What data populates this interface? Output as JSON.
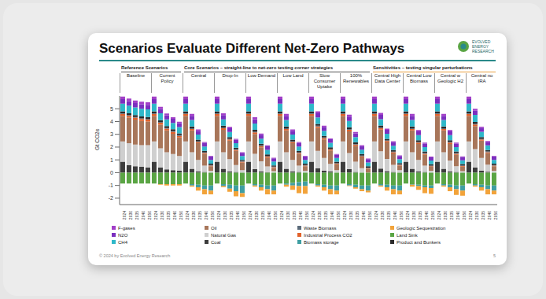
{
  "slide": {
    "logo": "EVOLVED ENERGY RESEARCH",
    "footer": "© 2024 by Evolved Energy Research",
    "page": "5"
  },
  "chart_data": {
    "type": "bar",
    "stacked": true,
    "title": "Scenarios Evaluate Different Net-Zero Pathways",
    "y_label": "Gt CO2e",
    "groups": [
      {
        "label": "Reference Scenarios",
        "scenarios": [
          "Baseline",
          "Current Policy"
        ]
      },
      {
        "label": "Core Scenarios – straight-line to net-zero testing corner strategies",
        "scenarios": [
          "Central",
          "Drop-In",
          "Low Demand",
          "Low Land",
          "Slow Consumer Uptake",
          "100% Renewables"
        ]
      },
      {
        "label": "Sensitivities – testing singular perturbations",
        "scenarios": [
          "Central High Data Center",
          "Central Low Biomass",
          "Central w Geologic H2",
          "Central no IRA"
        ]
      }
    ],
    "categories": [
      "2024",
      "2030",
      "2035",
      "2040",
      "2050",
      "2024",
      "2030",
      "2035",
      "2040",
      "2050",
      "2024",
      "2030",
      "2035",
      "2040",
      "2050",
      "2024",
      "2030",
      "2035",
      "2040",
      "2050",
      "2024",
      "2030",
      "2035",
      "2040",
      "2050",
      "2024",
      "2030",
      "2035",
      "2040",
      "2050",
      "2024",
      "2030",
      "2035",
      "2040",
      "2050",
      "2024",
      "2030",
      "2035",
      "2040",
      "2050",
      "2024",
      "2030",
      "2035",
      "2040",
      "2050",
      "2024",
      "2030",
      "2035",
      "2040",
      "2050",
      "2024",
      "2030",
      "2035",
      "2040",
      "2050",
      "2024",
      "2030",
      "2035",
      "2040",
      "2050"
    ],
    "ylim": [
      -2.5,
      6
    ],
    "yticks": [
      -2,
      -1,
      0,
      1,
      2,
      3,
      4,
      5
    ],
    "grid": false,
    "series": [
      {
        "name": "F-gases",
        "color": "#a23fc8",
        "values": [
          0.2,
          0.2,
          0.2,
          0.2,
          0.2,
          0.2,
          0.17,
          0.14,
          0.12,
          0.1,
          0.2,
          0.15,
          0.1,
          0.07,
          0.05,
          0.2,
          0.15,
          0.1,
          0.07,
          0.05,
          0.2,
          0.15,
          0.1,
          0.07,
          0.05,
          0.2,
          0.15,
          0.1,
          0.07,
          0.05,
          0.2,
          0.15,
          0.1,
          0.07,
          0.05,
          0.2,
          0.15,
          0.1,
          0.07,
          0.05,
          0.2,
          0.15,
          0.1,
          0.07,
          0.05,
          0.2,
          0.15,
          0.1,
          0.07,
          0.05,
          0.2,
          0.15,
          0.1,
          0.07,
          0.05,
          0.2,
          0.15,
          0.1,
          0.07,
          0.05
        ]
      },
      {
        "name": "N2O",
        "color": "#7b2fbf",
        "values": [
          0.35,
          0.35,
          0.35,
          0.35,
          0.35,
          0.35,
          0.34,
          0.33,
          0.33,
          0.32,
          0.35,
          0.33,
          0.3,
          0.28,
          0.25,
          0.35,
          0.33,
          0.3,
          0.28,
          0.25,
          0.35,
          0.33,
          0.3,
          0.28,
          0.25,
          0.35,
          0.33,
          0.3,
          0.28,
          0.25,
          0.35,
          0.33,
          0.3,
          0.28,
          0.25,
          0.35,
          0.33,
          0.3,
          0.28,
          0.25,
          0.35,
          0.33,
          0.3,
          0.28,
          0.25,
          0.35,
          0.33,
          0.3,
          0.28,
          0.25,
          0.35,
          0.33,
          0.3,
          0.28,
          0.25,
          0.35,
          0.33,
          0.3,
          0.28,
          0.25
        ]
      },
      {
        "name": "CH4",
        "color": "#2fb8c9",
        "values": [
          0.6,
          0.6,
          0.6,
          0.6,
          0.6,
          0.6,
          0.55,
          0.52,
          0.5,
          0.48,
          0.6,
          0.5,
          0.4,
          0.35,
          0.3,
          0.6,
          0.5,
          0.4,
          0.35,
          0.3,
          0.6,
          0.5,
          0.4,
          0.35,
          0.3,
          0.6,
          0.5,
          0.4,
          0.35,
          0.3,
          0.6,
          0.5,
          0.4,
          0.35,
          0.3,
          0.6,
          0.5,
          0.4,
          0.35,
          0.3,
          0.6,
          0.5,
          0.4,
          0.35,
          0.3,
          0.6,
          0.5,
          0.4,
          0.35,
          0.3,
          0.6,
          0.5,
          0.4,
          0.35,
          0.3,
          0.6,
          0.55,
          0.42,
          0.36,
          0.3
        ]
      },
      {
        "name": "Oil",
        "color": "#a8765a",
        "values": [
          2.0,
          2.0,
          1.95,
          1.9,
          1.85,
          2.0,
          1.85,
          1.7,
          1.6,
          1.45,
          2.0,
          1.7,
          1.3,
          0.9,
          0.35,
          2.0,
          1.75,
          1.45,
          1.1,
          0.6,
          2.0,
          1.55,
          1.1,
          0.7,
          0.25,
          2.0,
          1.7,
          1.3,
          0.9,
          0.35,
          2.0,
          1.8,
          1.45,
          1.05,
          0.45,
          2.0,
          1.7,
          1.25,
          0.85,
          0.3,
          2.0,
          1.7,
          1.3,
          0.9,
          0.35,
          2.0,
          1.7,
          1.25,
          0.85,
          0.3,
          2.0,
          1.7,
          1.3,
          0.9,
          0.35,
          2.0,
          1.8,
          1.35,
          0.9,
          0.35
        ]
      },
      {
        "name": "Natural Gas",
        "color": "#cfcfcf",
        "values": [
          1.6,
          1.7,
          1.7,
          1.7,
          1.75,
          1.6,
          1.5,
          1.35,
          1.25,
          1.15,
          1.6,
          1.3,
          0.9,
          0.5,
          0.15,
          1.6,
          1.3,
          0.95,
          0.55,
          0.2,
          1.6,
          1.2,
          0.8,
          0.45,
          0.12,
          1.6,
          1.3,
          0.9,
          0.5,
          0.15,
          1.6,
          1.35,
          1.0,
          0.6,
          0.2,
          1.6,
          1.25,
          0.8,
          0.35,
          0,
          1.6,
          1.35,
          0.95,
          0.55,
          0.2,
          1.6,
          1.3,
          0.9,
          0.5,
          0.15,
          1.6,
          1.3,
          0.85,
          0.45,
          0.12,
          1.6,
          1.45,
          1.0,
          0.55,
          0.15
        ]
      },
      {
        "name": "Coal",
        "color": "#3d3d3d",
        "values": [
          0.85,
          0.6,
          0.5,
          0.45,
          0.4,
          0.85,
          0.4,
          0.25,
          0.2,
          0.15,
          0.85,
          0.3,
          0.1,
          0.05,
          0,
          0.85,
          0.3,
          0.1,
          0.05,
          0,
          0.85,
          0.28,
          0.08,
          0.03,
          0,
          0.85,
          0.3,
          0.1,
          0.05,
          0,
          0.85,
          0.35,
          0.15,
          0.08,
          0,
          0.85,
          0.28,
          0.05,
          0,
          0,
          0.85,
          0.32,
          0.12,
          0.06,
          0,
          0.85,
          0.3,
          0.1,
          0.05,
          0,
          0.85,
          0.3,
          0.1,
          0.05,
          0,
          0.85,
          0.4,
          0.15,
          0.07,
          0
        ]
      },
      {
        "name": "Waste Biomass",
        "color": "#5b6b7a",
        "values": [
          0.05,
          0.05,
          0.05,
          0.05,
          0.05,
          0.05,
          0.05,
          0.05,
          0.05,
          0.05,
          0.05,
          0.05,
          0.05,
          0.05,
          0.05,
          0.05,
          0.05,
          0.05,
          0.05,
          0.05,
          0.05,
          0.05,
          0.05,
          0.05,
          0.05,
          0.05,
          0.05,
          0.05,
          0.05,
          0.05,
          0.05,
          0.05,
          0.05,
          0.05,
          0.05,
          0.05,
          0.05,
          0.05,
          0.05,
          0.05,
          0.05,
          0.05,
          0.05,
          0.05,
          0.05,
          0.05,
          0.05,
          0.05,
          0.05,
          0.05,
          0.05,
          0.05,
          0.05,
          0.05,
          0.05,
          0.05,
          0.05,
          0.05,
          0.05,
          0.05
        ]
      },
      {
        "name": "Industrial Process CO2",
        "color": "#e2622b",
        "values": [
          0.15,
          0.15,
          0.15,
          0.15,
          0.15,
          0.15,
          0.15,
          0.14,
          0.14,
          0.13,
          0.15,
          0.12,
          0.1,
          0.08,
          0.05,
          0.15,
          0.12,
          0.1,
          0.08,
          0.05,
          0.15,
          0.12,
          0.1,
          0.08,
          0.05,
          0.15,
          0.12,
          0.1,
          0.08,
          0.05,
          0.15,
          0.12,
          0.1,
          0.08,
          0.05,
          0.15,
          0.12,
          0.1,
          0.08,
          0.05,
          0.15,
          0.12,
          0.1,
          0.08,
          0.05,
          0.15,
          0.12,
          0.1,
          0.08,
          0.05,
          0.15,
          0.12,
          0.1,
          0.08,
          0.05,
          0.15,
          0.12,
          0.1,
          0.08,
          0.05
        ]
      },
      {
        "name": "Biomass storage",
        "color": "#3e9ea2",
        "values": [
          0,
          0,
          0,
          0,
          0,
          0,
          0,
          0,
          0,
          0,
          0,
          -0.1,
          -0.2,
          -0.3,
          -0.4,
          0,
          -0.15,
          -0.3,
          -0.45,
          -0.6,
          0,
          -0.1,
          -0.2,
          -0.3,
          -0.4,
          0,
          -0.1,
          -0.2,
          -0.3,
          -0.35,
          0,
          -0.1,
          -0.2,
          -0.3,
          -0.4,
          0,
          -0.1,
          -0.2,
          -0.3,
          -0.4,
          0,
          -0.1,
          -0.2,
          -0.3,
          -0.4,
          0,
          -0.05,
          -0.1,
          -0.15,
          -0.2,
          0,
          -0.1,
          -0.2,
          -0.3,
          -0.4,
          0,
          -0.1,
          -0.2,
          -0.3,
          -0.4
        ]
      },
      {
        "name": "Geologic Sequestration",
        "color": "#f2a33a",
        "values": [
          0,
          0,
          0,
          0,
          0,
          0,
          -0.05,
          -0.1,
          -0.1,
          -0.1,
          0,
          -0.1,
          -0.25,
          -0.4,
          -0.3,
          0,
          -0.1,
          -0.25,
          -0.4,
          -0.3,
          0,
          -0.1,
          -0.25,
          -0.4,
          -0.3,
          0,
          -0.15,
          -0.35,
          -0.55,
          -0.6,
          0,
          -0.1,
          -0.25,
          -0.4,
          -0.3,
          0,
          -0.05,
          -0.1,
          -0.15,
          -0.15,
          0,
          -0.1,
          -0.25,
          -0.4,
          -0.3,
          0,
          -0.15,
          -0.3,
          -0.45,
          -0.45,
          0,
          -0.1,
          -0.3,
          -0.45,
          -0.4,
          0,
          -0.1,
          -0.25,
          -0.4,
          -0.3
        ]
      },
      {
        "name": "Land Sink",
        "color": "#5aa544",
        "values": [
          -0.85,
          -0.85,
          -0.85,
          -0.85,
          -0.85,
          -0.85,
          -0.9,
          -0.9,
          -0.9,
          -0.9,
          -0.85,
          -0.9,
          -0.95,
          -1.0,
          -1.0,
          -0.85,
          -0.9,
          -0.95,
          -1.0,
          -1.0,
          -0.85,
          -0.9,
          -0.95,
          -1.0,
          -1.0,
          -0.85,
          -0.85,
          -0.8,
          -0.75,
          -0.7,
          -0.85,
          -0.9,
          -0.95,
          -1.0,
          -1.0,
          -0.85,
          -0.9,
          -0.95,
          -1.0,
          -1.0,
          -0.85,
          -0.9,
          -0.95,
          -1.0,
          -1.0,
          -0.85,
          -0.9,
          -0.95,
          -1.0,
          -1.0,
          -0.85,
          -0.9,
          -0.95,
          -1.0,
          -1.0,
          -0.85,
          -0.9,
          -0.95,
          -1.0,
          -1.0
        ]
      },
      {
        "name": "Product and Bunkers",
        "color": "#2b2b2b",
        "values": [
          0.15,
          0.15,
          0.15,
          0.15,
          0.15,
          0.15,
          0.15,
          0.15,
          0.15,
          0.15,
          0.15,
          0.15,
          0.13,
          0.12,
          0.1,
          0.15,
          0.15,
          0.13,
          0.12,
          0.1,
          0.15,
          0.15,
          0.13,
          0.12,
          0.1,
          0.15,
          0.15,
          0.13,
          0.12,
          0.1,
          0.15,
          0.15,
          0.13,
          0.12,
          0.1,
          0.15,
          0.15,
          0.13,
          0.12,
          0.1,
          0.15,
          0.15,
          0.13,
          0.12,
          0.1,
          0.15,
          0.15,
          0.13,
          0.12,
          0.1,
          0.15,
          0.15,
          0.13,
          0.12,
          0.1,
          0.15,
          0.15,
          0.13,
          0.12,
          0.1
        ]
      }
    ]
  }
}
